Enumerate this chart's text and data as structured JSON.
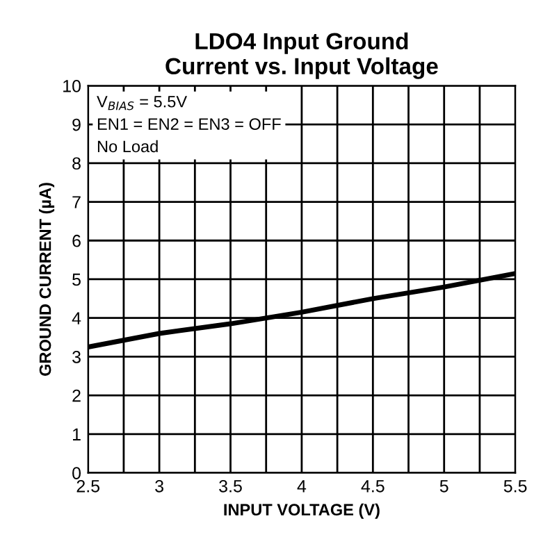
{
  "chart_data": {
    "type": "line",
    "title": "LDO4 Input Ground\nCurrent vs. Input Voltage",
    "xlabel": "INPUT VOLTAGE (V)",
    "ylabel": "GROUND CURRENT (µA)",
    "annotations": [
      "V$_{BIAS}$ = 5.5V\nEN1 = EN2 = EN3 = OFF\nNo Load"
    ],
    "x": [
      2.5,
      3.0,
      3.5,
      4.0,
      4.5,
      5.0,
      5.5
    ],
    "series": [
      {
        "color": "#000000",
        "values": [
          3.25,
          3.6,
          3.85,
          4.15,
          4.5,
          4.8,
          5.15
        ]
      }
    ],
    "xlim": [
      2.5,
      5.5
    ],
    "ylim": [
      0,
      10
    ],
    "xticks": [
      2.5,
      {
        "value": 2.75,
        "label": null
      },
      3,
      {
        "value": 3.25,
        "label": null
      },
      3.5,
      {
        "value": 3.75,
        "label": null
      },
      4,
      {
        "value": 4.25,
        "label": null
      },
      4.5,
      {
        "value": 4.75,
        "label": null
      },
      5,
      {
        "value": 5.25,
        "label": null
      },
      5.5
    ],
    "yticks": [
      0,
      1,
      2,
      3,
      4,
      5,
      6,
      7,
      8,
      9,
      10
    ],
    "grid": true,
    "marker": "none",
    "line_style": "solid"
  }
}
